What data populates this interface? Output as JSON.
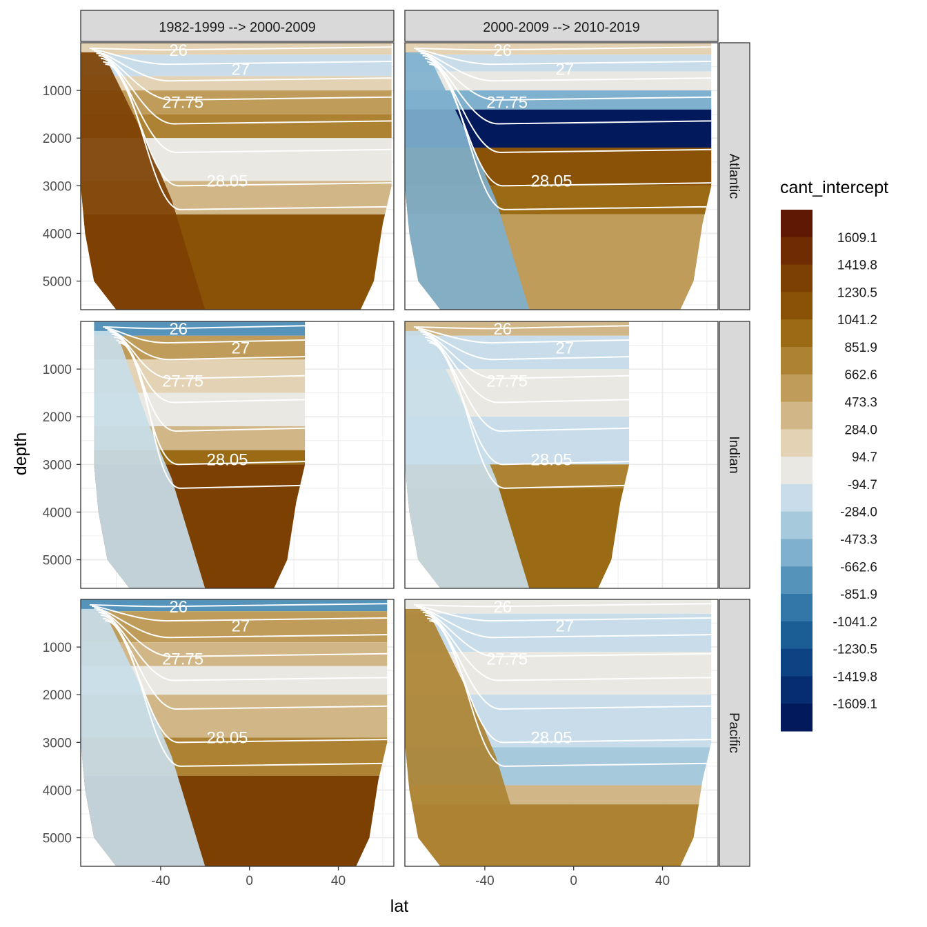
{
  "chart_data": {
    "type": "heatmap",
    "subtype": "faceted filled contour sections",
    "xlabel": "lat",
    "ylabel": "depth",
    "xlim": [
      -76,
      65
    ],
    "ylim": [
      5600,
      0
    ],
    "x_ticks": [
      -40,
      0,
      40
    ],
    "x_tick_labels": [
      "-40",
      "0",
      "40"
    ],
    "y_ticks": [
      1000,
      2000,
      3000,
      4000,
      5000
    ],
    "y_tick_labels": [
      "1000",
      "2000",
      "3000",
      "4000",
      "5000"
    ],
    "col_facets": [
      "1982-1999 --> 2000-2009",
      "2000-2009 --> 2010-2019"
    ],
    "row_facets": [
      "Atlantic",
      "Indian",
      "Pacific"
    ],
    "legend": {
      "title": "cant_intercept",
      "labels": [
        "1609.1",
        "1419.8",
        "1230.5",
        "1041.2",
        "851.9",
        "662.6",
        "473.3",
        "284.0",
        "94.7",
        "-94.7",
        "-284.0",
        "-473.3",
        "-662.6",
        "-851.9",
        "-1041.2",
        "-1230.5",
        "-1419.8",
        "-1609.1"
      ],
      "colors": [
        "#5e1803",
        "#6f2c03",
        "#7d4003",
        "#8a5206",
        "#9a6a14",
        "#ad8333",
        "#bf9c5a",
        "#d1b787",
        "#e3d2b4",
        "#e9e8e3",
        "#c8dde9",
        "#a6c9dc",
        "#7fb0cd",
        "#5593ba",
        "#3377a8",
        "#1b5d95",
        "#0d4283",
        "#062d6f",
        "#021a5c"
      ]
    },
    "isopycnal_labels": [
      "26",
      "27",
      "27.75",
      "28.05"
    ],
    "panels": [
      {
        "row": "Atlantic",
        "col": "1982-1999 --> 2000-2009",
        "lat_range": [
          -76,
          64
        ],
        "max_depth": 5600,
        "bands": [
          {
            "max_depth": 250,
            "class": "94.7"
          },
          {
            "max_depth": 700,
            "class": "-284.0"
          },
          {
            "max_depth": 1000,
            "class": "94.7"
          },
          {
            "max_depth": 1500,
            "class": "473.3"
          },
          {
            "max_depth": 2000,
            "class": "662.6"
          },
          {
            "max_depth": 2900,
            "class": "-94.7"
          },
          {
            "max_depth": 3600,
            "class": "284.0"
          },
          {
            "max_depth": 5600,
            "class": "1041.2"
          }
        ],
        "southern_class": "1230.5"
      },
      {
        "row": "Atlantic",
        "col": "2000-2009 --> 2010-2019",
        "lat_range": [
          -76,
          62
        ],
        "max_depth": 5600,
        "bands": [
          {
            "max_depth": 250,
            "class": "94.7"
          },
          {
            "max_depth": 600,
            "class": "-284.0"
          },
          {
            "max_depth": 1000,
            "class": "-94.7"
          },
          {
            "max_depth": 1400,
            "class": "-662.6"
          },
          {
            "max_depth": 2200,
            "class": "-1609.1"
          },
          {
            "max_depth": 3000,
            "class": "1041.2"
          },
          {
            "max_depth": 3600,
            "class": "851.9"
          },
          {
            "max_depth": 5600,
            "class": "473.3"
          }
        ],
        "southern_class": "-662.6"
      },
      {
        "row": "Indian",
        "col": "1982-1999 --> 2000-2009",
        "lat_range": [
          -70,
          25
        ],
        "max_depth": 5600,
        "bands": [
          {
            "max_depth": 300,
            "class": "-851.9"
          },
          {
            "max_depth": 800,
            "class": "473.3"
          },
          {
            "max_depth": 1500,
            "class": "94.7"
          },
          {
            "max_depth": 2200,
            "class": "-94.7"
          },
          {
            "max_depth": 2700,
            "class": "284.0"
          },
          {
            "max_depth": 3000,
            "class": "851.9"
          },
          {
            "max_depth": 5600,
            "class": "1230.5"
          }
        ],
        "southern_class": "-284.0"
      },
      {
        "row": "Indian",
        "col": "2000-2009 --> 2010-2019",
        "lat_range": [
          -76,
          25
        ],
        "max_depth": 5600,
        "bands": [
          {
            "max_depth": 300,
            "class": "284.0"
          },
          {
            "max_depth": 1000,
            "class": "-284.0"
          },
          {
            "max_depth": 2000,
            "class": "-94.7"
          },
          {
            "max_depth": 3000,
            "class": "-284.0"
          },
          {
            "max_depth": 3500,
            "class": "662.6"
          },
          {
            "max_depth": 5600,
            "class": "851.9"
          }
        ],
        "southern_class": "-284.0"
      },
      {
        "row": "Pacific",
        "col": "1982-1999 --> 2000-2009",
        "lat_range": [
          -76,
          62
        ],
        "max_depth": 5600,
        "bands": [
          {
            "max_depth": 250,
            "class": "-851.9"
          },
          {
            "max_depth": 900,
            "class": "473.3"
          },
          {
            "max_depth": 1400,
            "class": "284.0"
          },
          {
            "max_depth": 2000,
            "class": "-94.7"
          },
          {
            "max_depth": 2900,
            "class": "284.0"
          },
          {
            "max_depth": 3700,
            "class": "662.6"
          },
          {
            "max_depth": 5600,
            "class": "1230.5"
          }
        ],
        "southern_class": "-284.0"
      },
      {
        "row": "Pacific",
        "col": "2000-2009 --> 2010-2019",
        "lat_range": [
          -76,
          62
        ],
        "max_depth": 5600,
        "bands": [
          {
            "max_depth": 300,
            "class": "-94.7"
          },
          {
            "max_depth": 1100,
            "class": "-284.0"
          },
          {
            "max_depth": 2000,
            "class": "-94.7"
          },
          {
            "max_depth": 3100,
            "class": "-284.0"
          },
          {
            "max_depth": 3900,
            "class": "-473.3"
          },
          {
            "max_depth": 4300,
            "class": "284.0"
          },
          {
            "max_depth": 5600,
            "class": "662.6"
          }
        ],
        "southern_class": "662.6"
      }
    ]
  }
}
